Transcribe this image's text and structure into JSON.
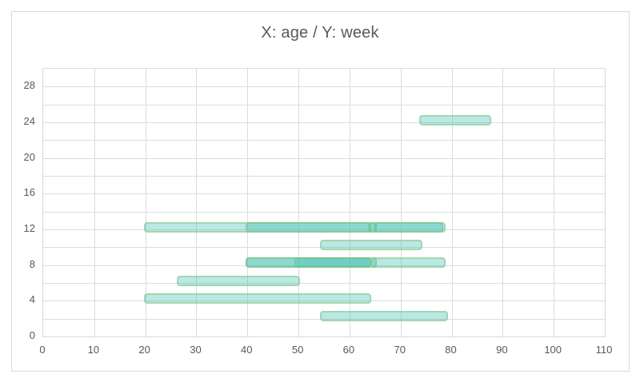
{
  "chart_data": {
    "type": "bar",
    "subtype": "horizontal-range-bars",
    "title": "X: age / Y: week",
    "xlabel": "age",
    "ylabel": "week",
    "xlim": [
      0,
      110
    ],
    "ylim": [
      0,
      30
    ],
    "x_tick_step": 10,
    "x_ticks": [
      0,
      10,
      20,
      30,
      40,
      50,
      60,
      70,
      80,
      90,
      100,
      110
    ],
    "y_grid_step": 2,
    "y_ticks": [
      0,
      4,
      8,
      12,
      16,
      20,
      24,
      28
    ],
    "grid": true,
    "legend": "none",
    "bars": [
      {
        "week": 2,
        "age_start": 54.5,
        "age_end": 79
      },
      {
        "week": 4,
        "age_start": 20,
        "age_end": 64
      },
      {
        "week": 6,
        "age_start": 26.5,
        "age_end": 50
      },
      {
        "week": 8,
        "age_start": 40,
        "age_end": 65
      },
      {
        "week": 8,
        "age_start": 40,
        "age_end": 64
      },
      {
        "week": 8,
        "age_start": 49.5,
        "age_end": 64
      },
      {
        "week": 8,
        "age_start": 64.5,
        "age_end": 78.5
      },
      {
        "week": 10,
        "age_start": 54.5,
        "age_end": 74
      },
      {
        "week": 12,
        "age_start": 20,
        "age_end": 64
      },
      {
        "week": 12,
        "age_start": 40,
        "age_end": 65
      },
      {
        "week": 12,
        "age_start": 64,
        "age_end": 78
      },
      {
        "week": 12,
        "age_start": 65,
        "age_end": 78.5
      },
      {
        "week": 24,
        "age_start": 74,
        "age_end": 87.5
      }
    ]
  },
  "colors": {
    "bar_fill": "rgba(58, 188, 176, 0.35)",
    "bar_border": "rgba(135, 196, 130, 0.5)",
    "grid": "#dcdcdc",
    "frame": "#d9d9d9",
    "axis_text": "#595959",
    "title_text": "#595959",
    "background": "#ffffff"
  }
}
